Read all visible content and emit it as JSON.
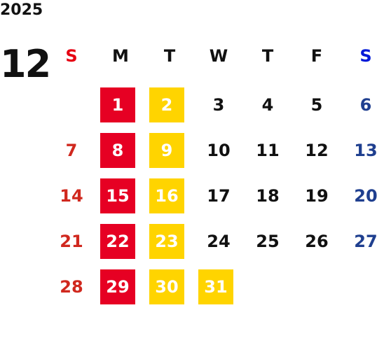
{
  "calendar": {
    "year": "2025",
    "month": "12",
    "weekdays": [
      "S",
      "M",
      "T",
      "W",
      "T",
      "F",
      "S"
    ],
    "weekday_colors": [
      "#e60012",
      "#111111",
      "#111111",
      "#111111",
      "#111111",
      "#111111",
      "#0019d8"
    ],
    "day_colors": [
      "#d0281e",
      "#111111",
      "#111111",
      "#111111",
      "#111111",
      "#111111",
      "#1f3f8f"
    ],
    "weeks": [
      [
        null,
        {
          "day": "1",
          "highlight": "#e60023"
        },
        {
          "day": "2",
          "highlight": "#ffd400"
        },
        "3",
        "4",
        "5",
        "6"
      ],
      [
        "7",
        {
          "day": "8",
          "highlight": "#e60023"
        },
        {
          "day": "9",
          "highlight": "#ffd400"
        },
        "10",
        "11",
        "12",
        "13"
      ],
      [
        "14",
        {
          "day": "15",
          "highlight": "#e60023"
        },
        {
          "day": "16",
          "highlight": "#ffd400"
        },
        "17",
        "18",
        "19",
        "20"
      ],
      [
        "21",
        {
          "day": "22",
          "highlight": "#e60023"
        },
        {
          "day": "23",
          "highlight": "#ffd400"
        },
        "24",
        "25",
        "26",
        "27"
      ],
      [
        "28",
        {
          "day": "29",
          "highlight": "#e60023"
        },
        {
          "day": "30",
          "highlight": "#ffd400"
        },
        {
          "day": "31",
          "highlight": "#ffd400"
        },
        null,
        null,
        null
      ]
    ]
  }
}
